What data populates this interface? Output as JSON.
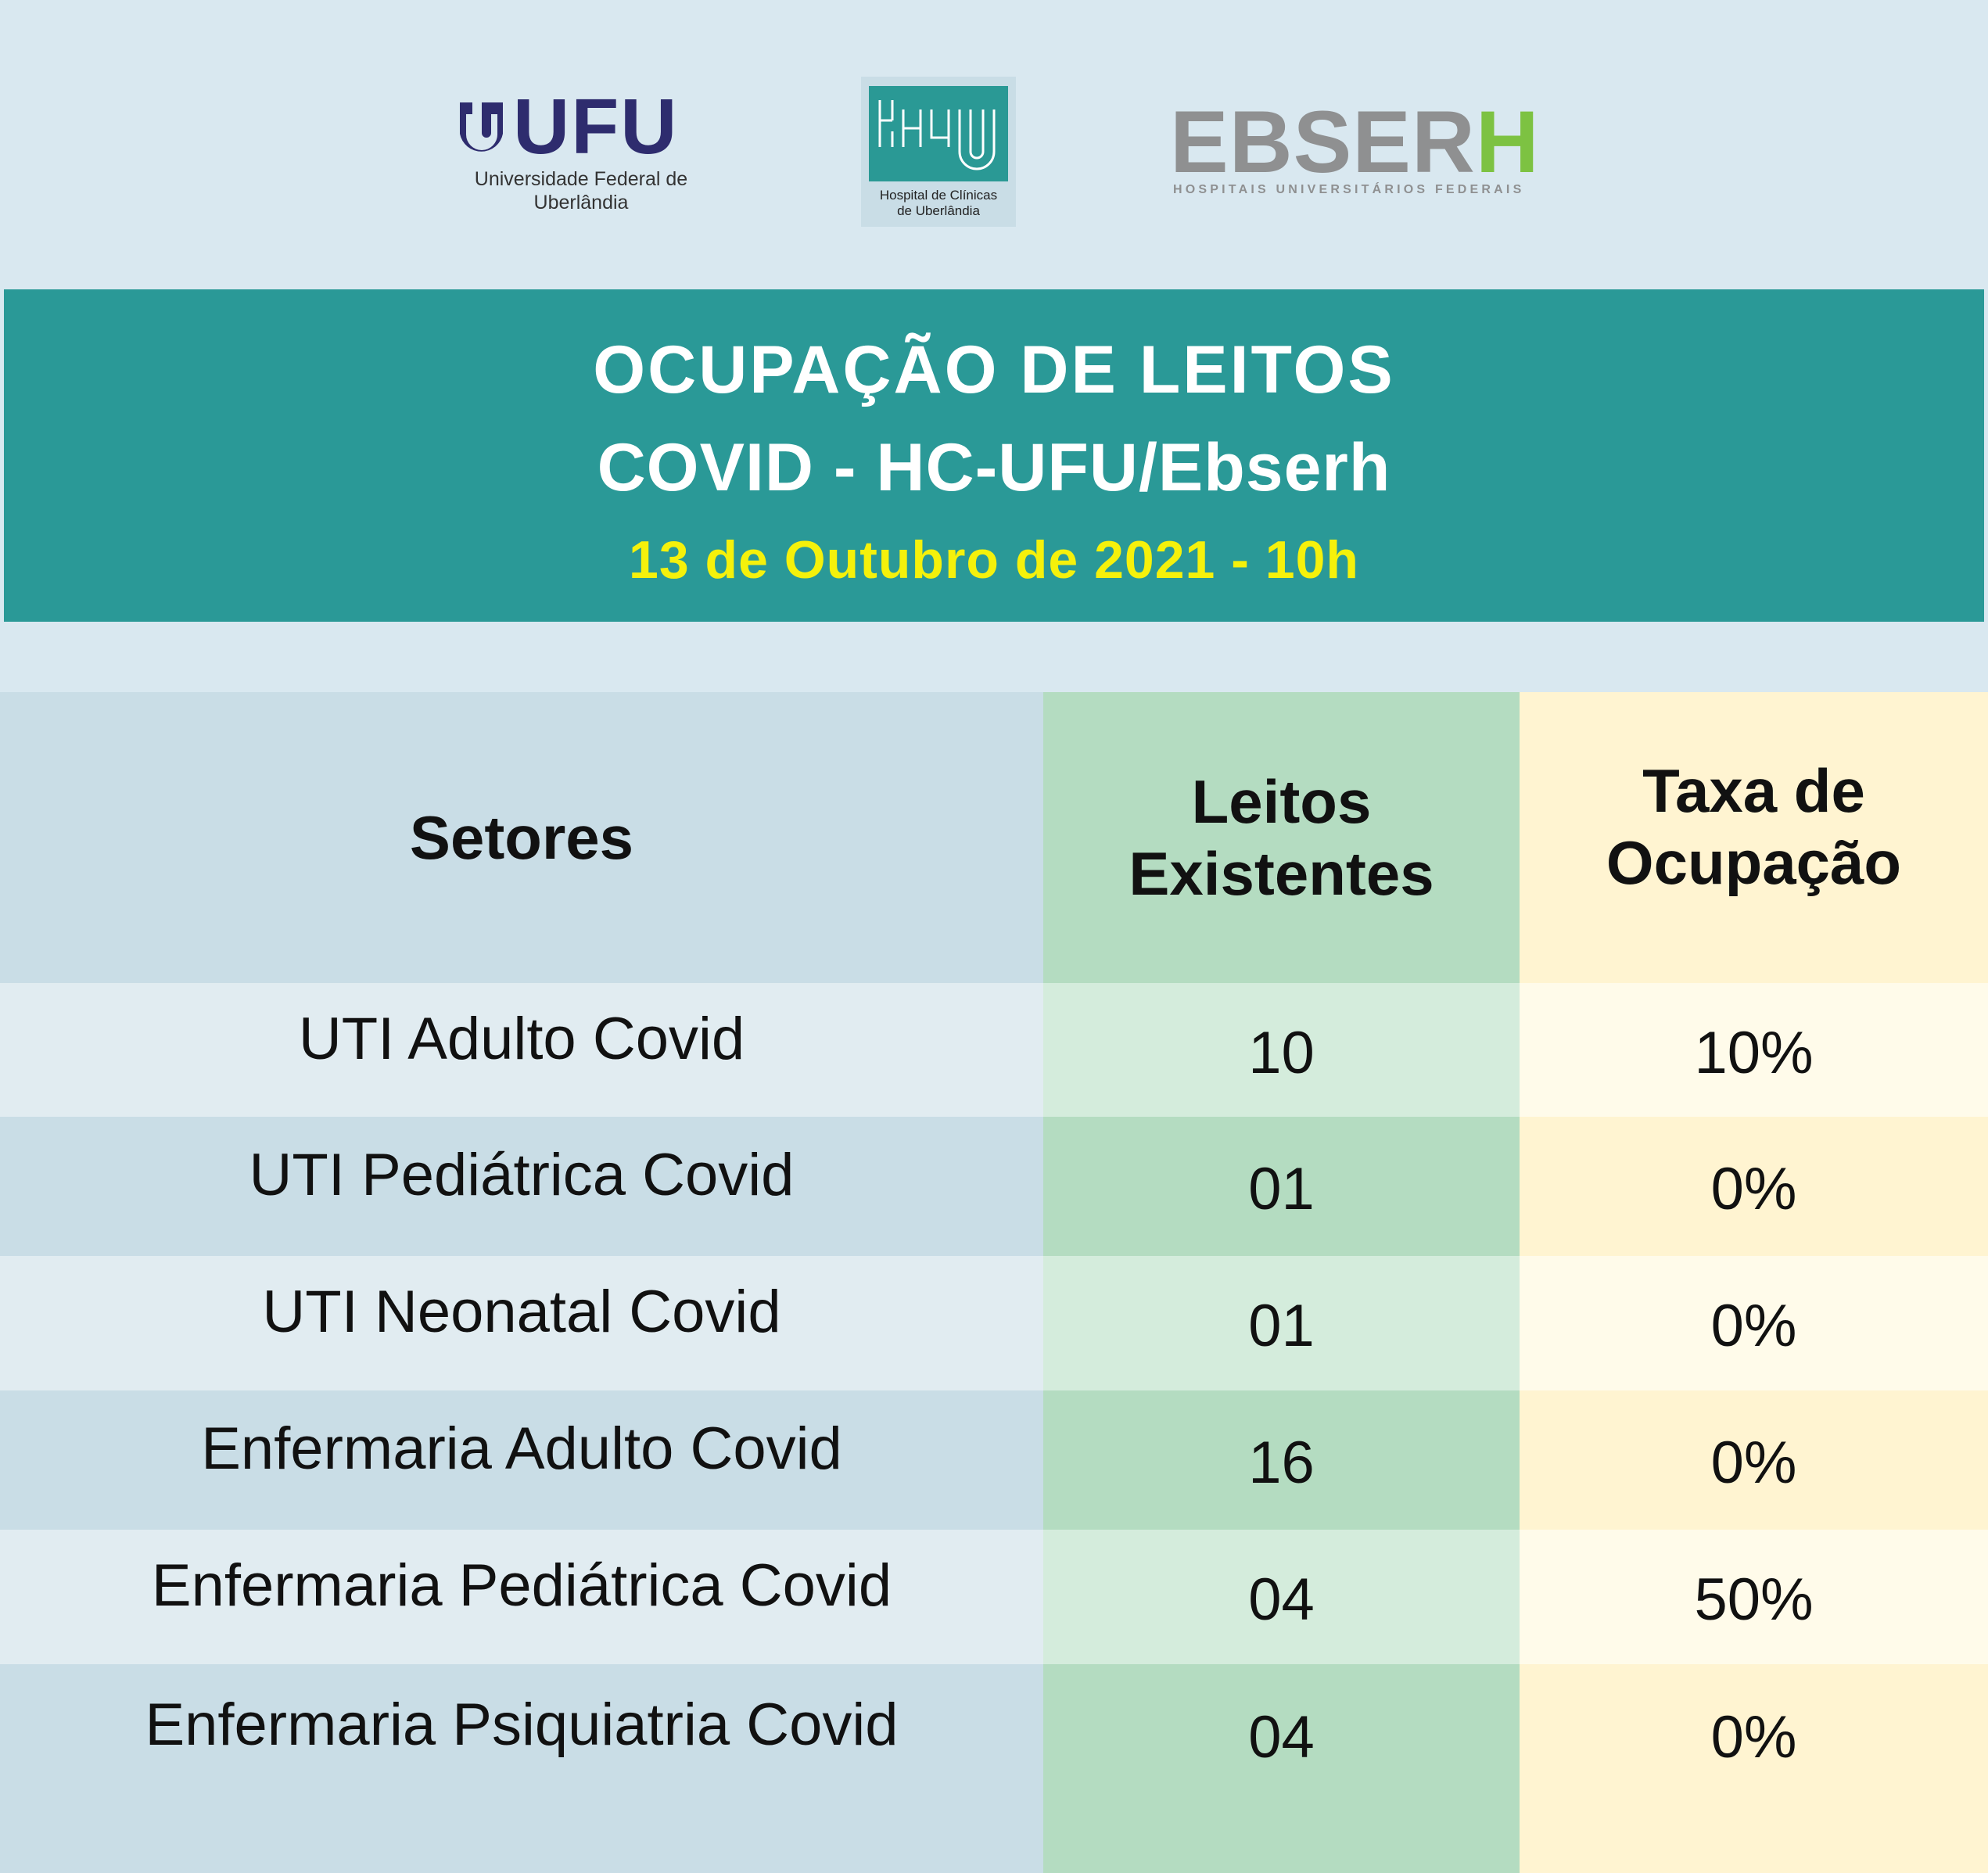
{
  "logos": {
    "ufu": {
      "name": "UFU",
      "subtitle_line1": "Universidade Federal de",
      "subtitle_line2": "Uberlândia"
    },
    "hcu": {
      "subtitle_line1": "Hospital de Clínicas",
      "subtitle_line2": "de Uberlândia"
    },
    "ebserh": {
      "name_main": "EBSER",
      "name_accent": "H",
      "tagline": "HOSPITAIS UNIVERSITÁRIOS FEDERAIS"
    }
  },
  "colors": {
    "teal": "#2a9997",
    "title_yellow": "#f5f10b",
    "ufu_navy": "#2e2c6e",
    "ebserh_green": "#7dc242",
    "ebserh_gray": "#8f9091"
  },
  "banner": {
    "title_line1": "OCUPAÇÃO DE LEITOS",
    "title_line2": "COVID - HC-UFU/Ebserh",
    "date": "13 de Outubro de 2021 - 10h"
  },
  "table": {
    "headers": {
      "setores": "Setores",
      "leitos_line1": "Leitos",
      "leitos_line2": "Existentes",
      "taxa_line1": "Taxa de",
      "taxa_line2": "Ocupação"
    },
    "rows": [
      {
        "setor": "UTI Adulto Covid",
        "leitos": "10",
        "taxa": "10%"
      },
      {
        "setor": "UTI Pediátrica Covid",
        "leitos": "01",
        "taxa": "0%"
      },
      {
        "setor": "UTI Neonatal Covid",
        "leitos": "01",
        "taxa": "0%"
      },
      {
        "setor": "Enfermaria Adulto Covid",
        "leitos": "16",
        "taxa": "0%"
      },
      {
        "setor": "Enfermaria Pediátrica Covid",
        "leitos": "04",
        "taxa": "50%"
      },
      {
        "setor": "Enfermaria Psiquiatria Covid",
        "leitos": "04",
        "taxa": "0%"
      }
    ]
  }
}
